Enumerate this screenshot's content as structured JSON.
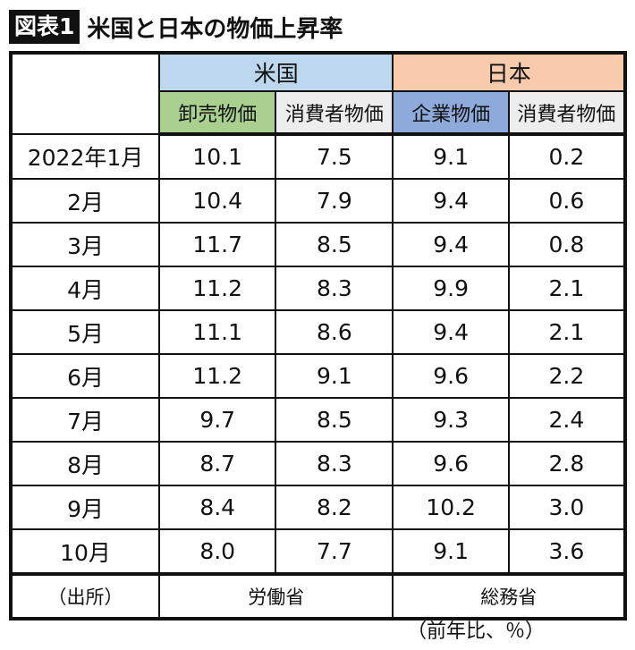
{
  "title": {
    "badge": "図表1",
    "text": "米国と日本の物価上昇率"
  },
  "header": {
    "groups": [
      {
        "label": "米国",
        "color": "#bdd7ee"
      },
      {
        "label": "日本",
        "color": "#f8cbad"
      }
    ],
    "columns": [
      {
        "label": "卸売物価",
        "color": "#a9d08e"
      },
      {
        "label": "消費者物価",
        "color": "#ededed"
      },
      {
        "label": "企業物価",
        "color": "#8eaadb"
      },
      {
        "label": "消費者物価",
        "color": "#ededed"
      }
    ]
  },
  "rows": [
    {
      "month": "2022年1月",
      "v": [
        "10.1",
        "7.5",
        "9.1",
        "0.2"
      ]
    },
    {
      "month": "2月",
      "v": [
        "10.4",
        "7.9",
        "9.4",
        "0.6"
      ]
    },
    {
      "month": "3月",
      "v": [
        "11.7",
        "8.5",
        "9.4",
        "0.8"
      ]
    },
    {
      "month": "4月",
      "v": [
        "11.2",
        "8.3",
        "9.9",
        "2.1"
      ]
    },
    {
      "month": "5月",
      "v": [
        "11.1",
        "8.6",
        "9.4",
        "2.1"
      ]
    },
    {
      "month": "6月",
      "v": [
        "11.2",
        "9.1",
        "9.6",
        "2.2"
      ]
    },
    {
      "month": "7月",
      "v": [
        "9.7",
        "8.5",
        "9.3",
        "2.4"
      ]
    },
    {
      "month": "8月",
      "v": [
        "8.7",
        "8.3",
        "9.6",
        "2.8"
      ]
    },
    {
      "month": "9月",
      "v": [
        "8.4",
        "8.2",
        "10.2",
        "3.0"
      ]
    },
    {
      "month": "10月",
      "v": [
        "8.0",
        "7.7",
        "9.1",
        "3.6"
      ]
    }
  ],
  "source": {
    "label": "（出所）",
    "us": "労働省",
    "jp": "総務省"
  },
  "note": "（前年比、％）"
}
